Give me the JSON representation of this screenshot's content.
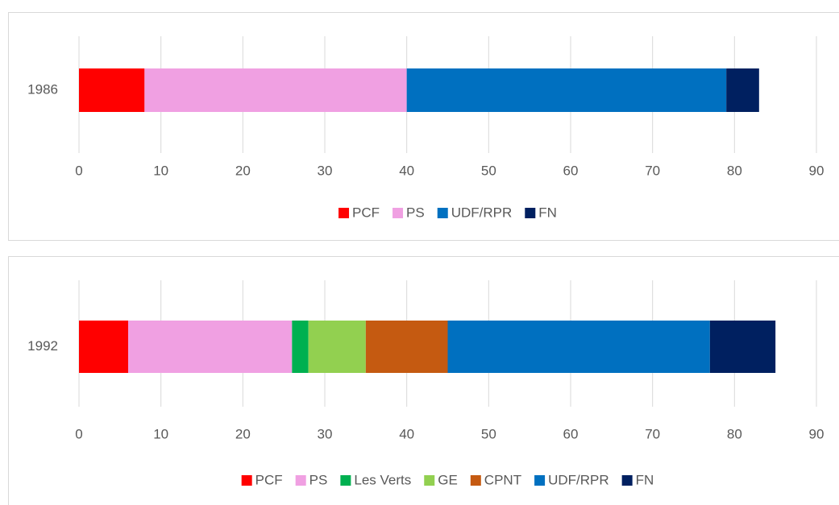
{
  "chart_data": [
    {
      "type": "bar",
      "orientation": "horizontal",
      "stacked": true,
      "categories": [
        "1986"
      ],
      "series": [
        {
          "name": "PCF",
          "color": "#ff0000",
          "values": [
            8
          ]
        },
        {
          "name": "PS",
          "color": "#f0a0e2",
          "values": [
            32
          ]
        },
        {
          "name": "UDF/RPR",
          "color": "#0070c0",
          "values": [
            39
          ]
        },
        {
          "name": "FN",
          "color": "#002060",
          "values": [
            4
          ]
        }
      ],
      "xlim": [
        0,
        90
      ],
      "xticks": [
        0,
        10,
        20,
        30,
        40,
        50,
        60,
        70,
        80,
        90
      ],
      "grid": true,
      "legend": "bottom"
    },
    {
      "type": "bar",
      "orientation": "horizontal",
      "stacked": true,
      "categories": [
        "1992"
      ],
      "series": [
        {
          "name": "PCF",
          "color": "#ff0000",
          "values": [
            6
          ]
        },
        {
          "name": "PS",
          "color": "#f0a0e2",
          "values": [
            20
          ]
        },
        {
          "name": "Les Verts",
          "color": "#00b050",
          "values": [
            2
          ]
        },
        {
          "name": "GE",
          "color": "#92d050",
          "values": [
            7
          ]
        },
        {
          "name": "CPNT",
          "color": "#c55a11",
          "values": [
            10
          ]
        },
        {
          "name": "UDF/RPR",
          "color": "#0070c0",
          "values": [
            32
          ]
        },
        {
          "name": "FN",
          "color": "#002060",
          "values": [
            8
          ]
        }
      ],
      "xlim": [
        0,
        90
      ],
      "xticks": [
        0,
        10,
        20,
        30,
        40,
        50,
        60,
        70,
        80,
        90
      ],
      "grid": true,
      "legend": "bottom"
    }
  ]
}
